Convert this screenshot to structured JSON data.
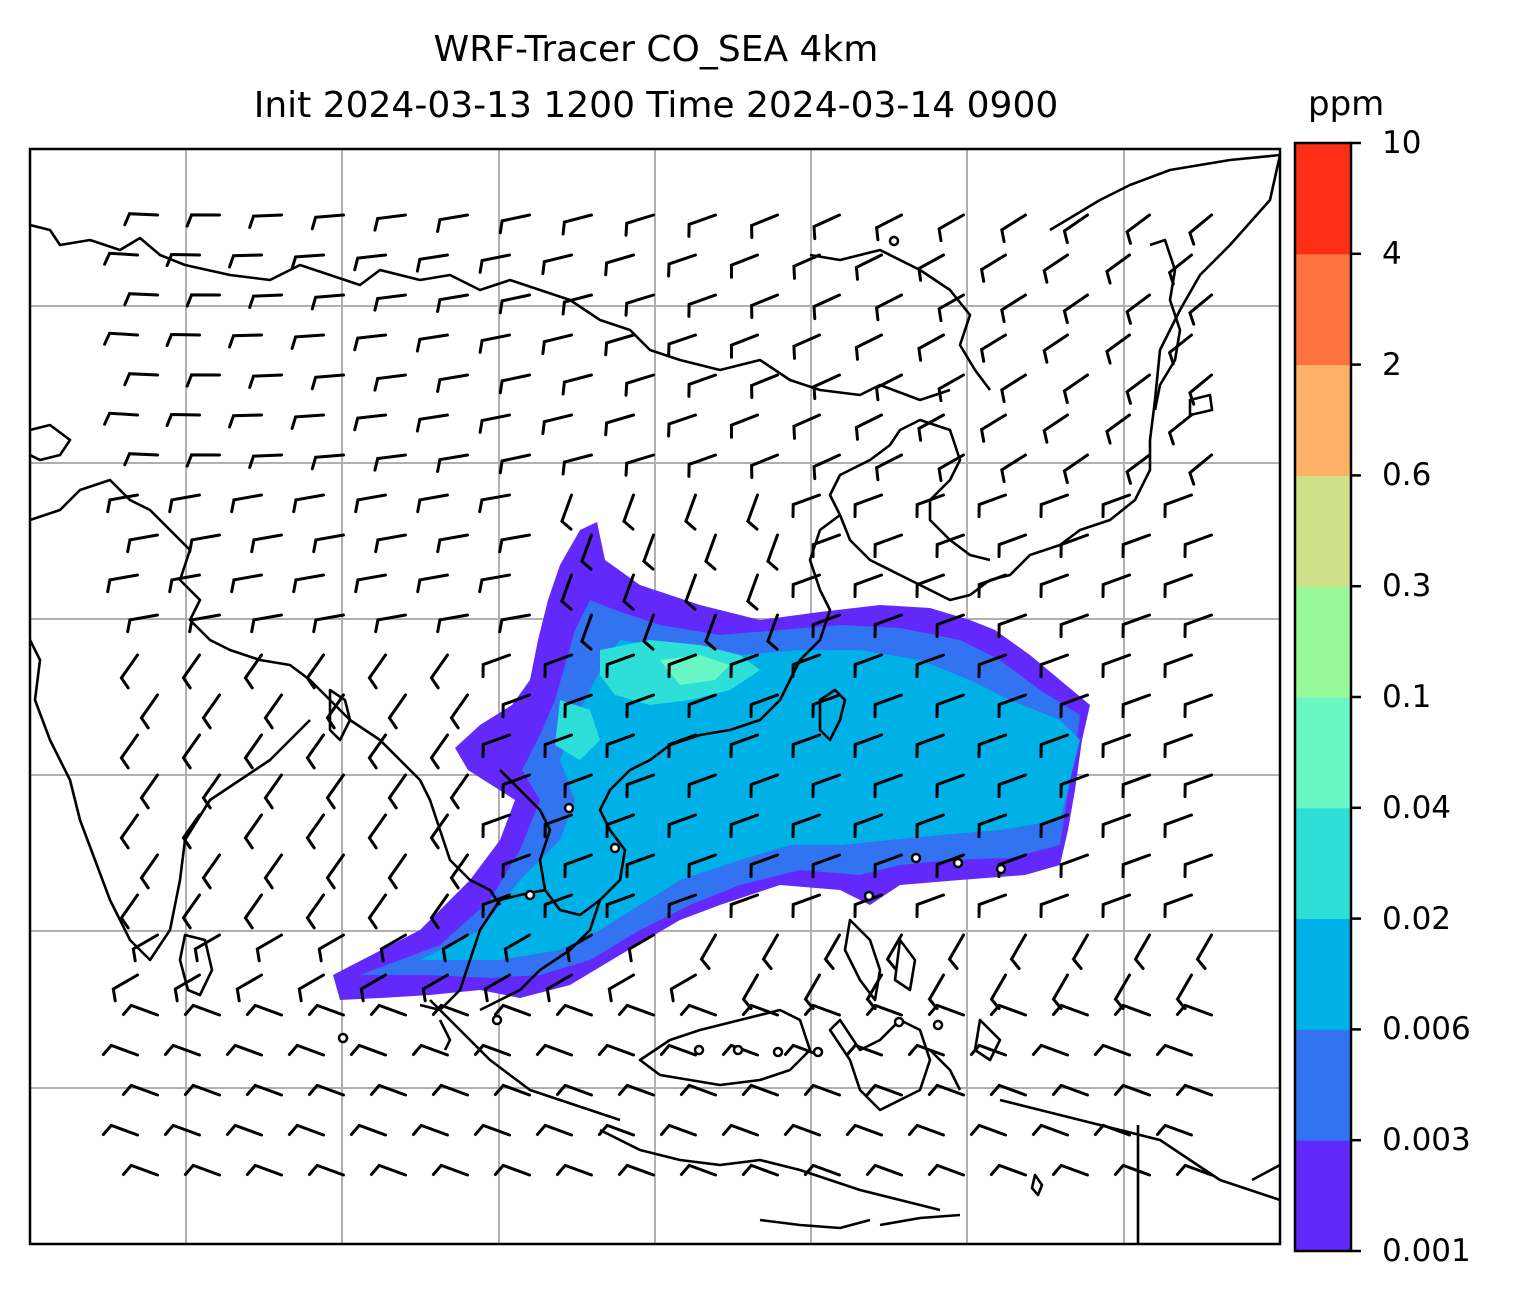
{
  "title": {
    "line1": "WRF-Tracer CO_SEA 4km",
    "line2": "Init 2024-03-13 1200 Time 2024-03-14 0900"
  },
  "colorbar": {
    "unit": "ppm",
    "ticks": [
      "0.001",
      "0.003",
      "0.006",
      "0.02",
      "0.04",
      "0.1",
      "0.3",
      "0.6",
      "2",
      "4",
      "10"
    ],
    "colors": [
      "#6328fa",
      "#3273f2",
      "#00b1e8",
      "#2ddfd6",
      "#69f8c5",
      "#98f99a",
      "#cee088",
      "#fdb166",
      "#fe733d",
      "#fe2d16"
    ]
  },
  "map": {
    "gridlines": true,
    "coastline_color": "#000000",
    "grid_color": "#b0b0b0",
    "wind_barbs": true,
    "station_markers": true
  }
}
